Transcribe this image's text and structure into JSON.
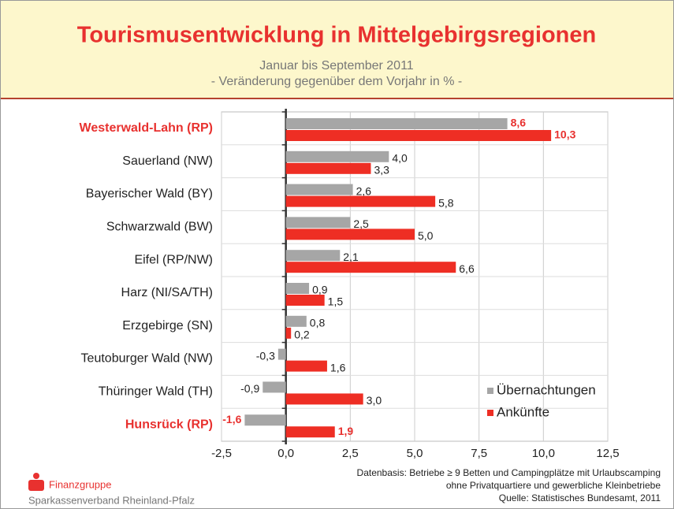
{
  "chart_data": {
    "type": "hbar",
    "title": "Tourismusentwicklung in Mittelgebirgsregionen",
    "subtitle": [
      "Januar bis September 2011",
      "- Veränderung gegenüber dem Vorjahr in % -"
    ],
    "categories": [
      "Westerwald-Lahn (RP)",
      "Sauerland (NW)",
      "Bayerischer Wald (BY)",
      "Schwarzwald (BW)",
      "Eifel (RP/NW)",
      "Harz (NI/SA/TH)",
      "Erzgebirge (SN)",
      "Teutoburger Wald (NW)",
      "Thüringer Wald (TH)",
      "Hunsrück (RP)"
    ],
    "label_color": "#222222",
    "category_colors": [
      "#e8312f",
      "#222222",
      "#222222",
      "#222222",
      "#222222",
      "#222222",
      "#222222",
      "#222222",
      "#222222",
      "#e8312f"
    ],
    "series": [
      {
        "name": "Übernachtungen",
        "color": "#a6a6a6",
        "values": [
          8.6,
          4.0,
          2.6,
          2.5,
          2.1,
          0.9,
          0.8,
          -0.3,
          -0.9,
          -1.6
        ],
        "value_labels": [
          "8,6",
          "4,0",
          "2,6",
          "2,5",
          "2,1",
          "0,9",
          "0,8",
          "-0,3",
          "-0,9",
          "-1,6"
        ]
      },
      {
        "name": "Ankünfte",
        "color": "#ee2e24",
        "values": [
          10.3,
          3.3,
          5.8,
          5.0,
          6.6,
          1.5,
          0.2,
          1.6,
          3.0,
          1.9
        ],
        "value_labels": [
          "10,3",
          "3,3",
          "5,8",
          "5,0",
          "6,6",
          "1,5",
          "0,2",
          "1,6",
          "3,0",
          "1,9"
        ]
      }
    ],
    "xlim": [
      -2.5,
      12.5
    ],
    "xticks": [
      {
        "value": -2.5,
        "label": "-2,5"
      },
      {
        "value": 0,
        "label": "0,0"
      },
      {
        "value": 2.5,
        "label": "2,5"
      },
      {
        "value": 5,
        "label": "5,0"
      },
      {
        "value": 7.5,
        "label": "7,5"
      },
      {
        "value": 10,
        "label": "10,0"
      },
      {
        "value": 12.5,
        "label": "12,5"
      }
    ],
    "grid": true,
    "legend": "lower right",
    "notes": [
      "Datenbasis: Betriebe ≥ 9 Betten und Campingplätze mit Urlaubscamping",
      "ohne Privatquartiere und gewerbliche Kleinbetriebe",
      "Quelle: Statistisches Bundesamt, 2011"
    ],
    "logo": {
      "brand": "Finanzgruppe",
      "org": "Sparkassenverband Rheinland-Pfalz"
    }
  }
}
